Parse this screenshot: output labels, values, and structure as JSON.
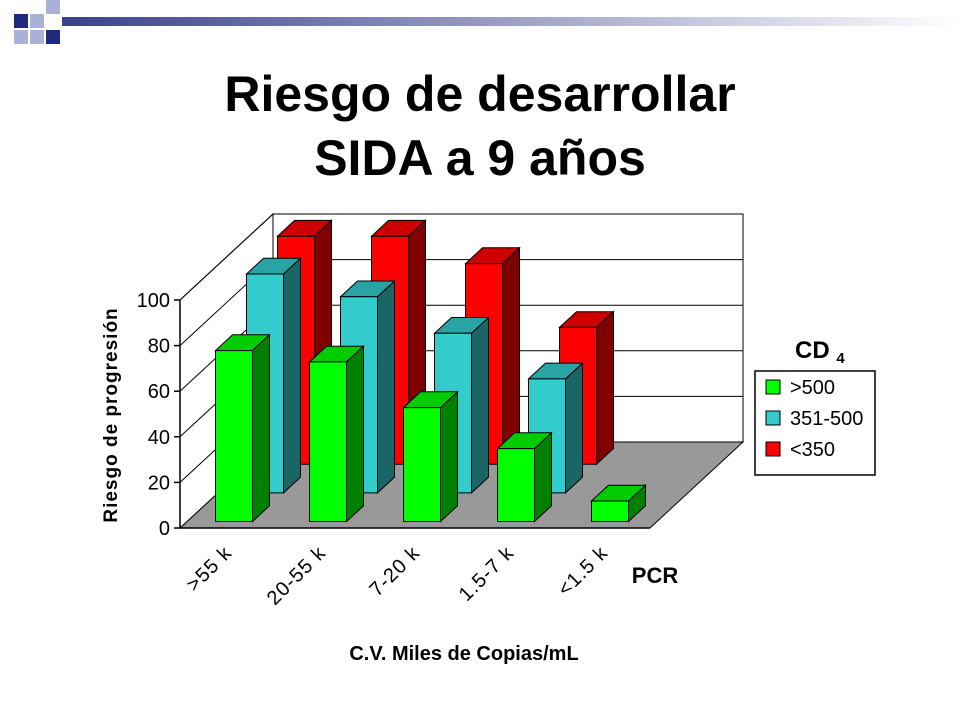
{
  "slide": {
    "title_line1": "Riesgo de desarrollar",
    "title_line2": "SIDA a 9 años",
    "colors": {
      "deco_dark": "#1f2a7a",
      "deco_light": "#aab0d6",
      "deco_bar_start": "#3a418a",
      "deco_bar_end": "#ffffff"
    }
  },
  "chart_data": {
    "type": "bar",
    "subtype": "3d-grouped",
    "categories": [
      ">55 k",
      "20-55 k",
      "7-20 k",
      "1.5-7 k",
      "<1.5 k"
    ],
    "series": [
      {
        "name": ">500",
        "values": [
          75,
          70,
          50,
          32,
          9
        ],
        "color": "#00ff00"
      },
      {
        "name": "351-500",
        "values": [
          96,
          86,
          70,
          50,
          0
        ],
        "color": "#33cccc"
      },
      {
        "name": "<350",
        "values": [
          100,
          100,
          88,
          60,
          0
        ],
        "color": "#ff0000"
      }
    ],
    "ylabel": "Riesgo de progresión",
    "xlabel": "C.V.  Miles de Copias/mL",
    "depth_axis_label": "PCR",
    "legend_title": "CD 4",
    "yticks": [
      0,
      20,
      40,
      60,
      80,
      100
    ],
    "ylim": [
      0,
      100
    ],
    "grid": true,
    "legend_position": "right",
    "wall_color": "#ffffff",
    "floor_color": "#999999"
  }
}
